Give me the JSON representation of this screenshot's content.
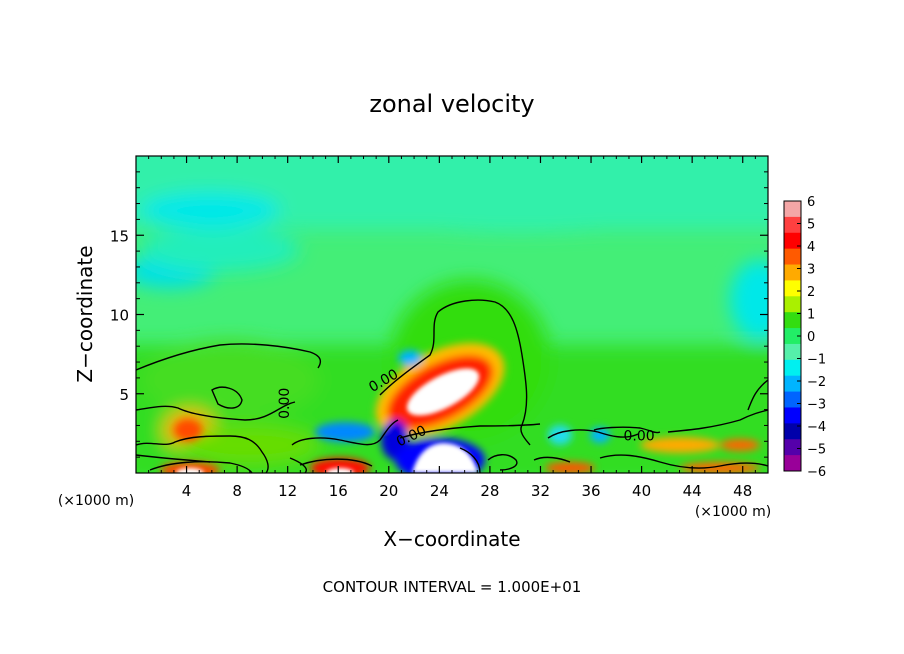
{
  "chart_data": {
    "type": "heatmap",
    "title": "zonal velocity",
    "xlabel": "X−coordinate",
    "ylabel": "Z−coordinate",
    "x_unit_left": "(×1000 m)",
    "x_unit_right": "(×1000 m)",
    "footer": "CONTOUR INTERVAL = 1.000E+01",
    "xlim": [
      0,
      50
    ],
    "ylim": [
      0,
      20
    ],
    "x_ticks": [
      4,
      8,
      12,
      16,
      20,
      24,
      28,
      32,
      36,
      40,
      44,
      48
    ],
    "y_ticks": [
      5,
      10,
      15
    ],
    "colorbar": {
      "range": [
        -6,
        6
      ],
      "labels": [
        "6",
        "5",
        "4",
        "3",
        "2",
        "1",
        "0",
        "−1",
        "−2",
        "−3",
        "−4",
        "−5",
        "−6"
      ],
      "colors": [
        "#f4a6a6",
        "#ff4040",
        "#ff0000",
        "#ff5a00",
        "#ffaa00",
        "#ffff00",
        "#aaf000",
        "#33dd11",
        "#22ee66",
        "#55f0aa",
        "#00f0f0",
        "#00b4ff",
        "#0064ff",
        "#0000ff",
        "#0000aa",
        "#5500aa",
        "#990099"
      ]
    },
    "contour_labels": [
      {
        "text": "0.00",
        "x": 11.8,
        "z": 4.4
      },
      {
        "text": "0.00",
        "x": 19.6,
        "z": 5.8
      },
      {
        "text": "0.00",
        "x": 21.8,
        "z": 2.3
      },
      {
        "text": "0.00",
        "x": 39.8,
        "z": 2.3
      }
    ]
  }
}
